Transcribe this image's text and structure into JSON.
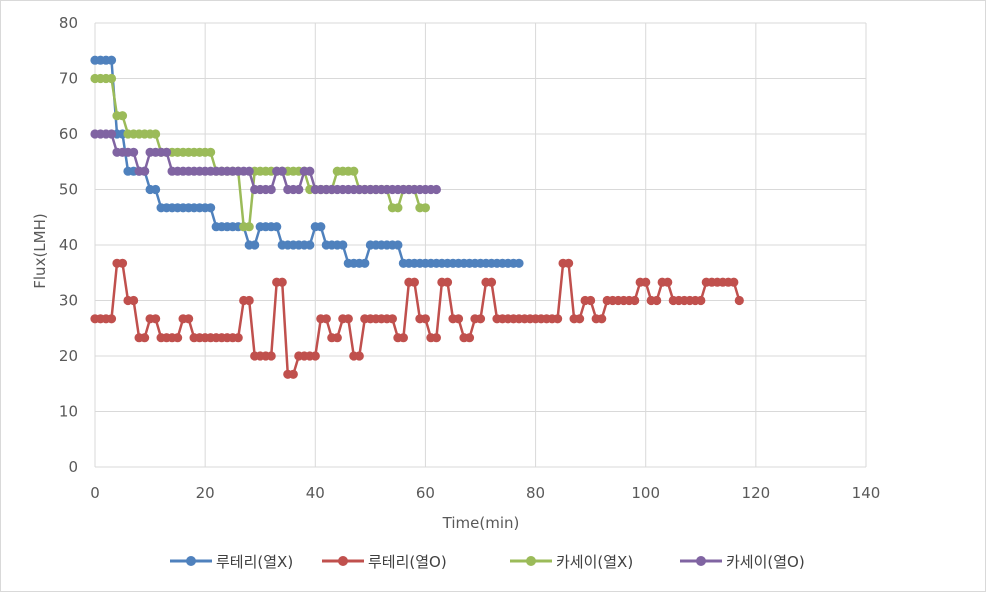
{
  "chart_data": {
    "type": "line",
    "xlabel": "Time(min)",
    "ylabel": "Flux(LMH)",
    "xlim": [
      0,
      140
    ],
    "ylim": [
      0,
      80
    ],
    "xticks": [
      0,
      20,
      40,
      60,
      80,
      100,
      120,
      140
    ],
    "yticks": [
      0,
      10,
      20,
      30,
      40,
      50,
      60,
      70,
      80
    ],
    "grid": true,
    "legend_position": "bottom",
    "series": [
      {
        "name": "루테리(열X)",
        "color": "#4f81bd",
        "points": [
          [
            0,
            73.3
          ],
          [
            1,
            73.3
          ],
          [
            2,
            73.3
          ],
          [
            3,
            73.3
          ],
          [
            4,
            60
          ],
          [
            5,
            60
          ],
          [
            6,
            53.3
          ],
          [
            7,
            53.3
          ],
          [
            8,
            53.3
          ],
          [
            9,
            53.3
          ],
          [
            10,
            50
          ],
          [
            11,
            50
          ],
          [
            12,
            46.7
          ],
          [
            13,
            46.7
          ],
          [
            14,
            46.7
          ],
          [
            15,
            46.7
          ],
          [
            16,
            46.7
          ],
          [
            17,
            46.7
          ],
          [
            18,
            46.7
          ],
          [
            19,
            46.7
          ],
          [
            20,
            46.7
          ],
          [
            21,
            46.7
          ],
          [
            22,
            43.3
          ],
          [
            23,
            43.3
          ],
          [
            24,
            43.3
          ],
          [
            25,
            43.3
          ],
          [
            26,
            43.3
          ],
          [
            27,
            43.3
          ],
          [
            28,
            40
          ],
          [
            29,
            40
          ],
          [
            30,
            43.3
          ],
          [
            31,
            43.3
          ],
          [
            32,
            43.3
          ],
          [
            33,
            43.3
          ],
          [
            34,
            40
          ],
          [
            35,
            40
          ],
          [
            36,
            40
          ],
          [
            37,
            40
          ],
          [
            38,
            40
          ],
          [
            39,
            40
          ],
          [
            40,
            43.3
          ],
          [
            41,
            43.3
          ],
          [
            42,
            40
          ],
          [
            43,
            40
          ],
          [
            44,
            40
          ],
          [
            45,
            40
          ],
          [
            46,
            36.7
          ],
          [
            47,
            36.7
          ],
          [
            48,
            36.7
          ],
          [
            49,
            36.7
          ],
          [
            50,
            40
          ],
          [
            51,
            40
          ],
          [
            52,
            40
          ],
          [
            53,
            40
          ],
          [
            54,
            40
          ],
          [
            55,
            40
          ],
          [
            56,
            36.7
          ],
          [
            57,
            36.7
          ],
          [
            58,
            36.7
          ],
          [
            59,
            36.7
          ],
          [
            60,
            36.7
          ],
          [
            61,
            36.7
          ],
          [
            62,
            36.7
          ],
          [
            63,
            36.7
          ],
          [
            64,
            36.7
          ],
          [
            65,
            36.7
          ],
          [
            66,
            36.7
          ],
          [
            67,
            36.7
          ],
          [
            68,
            36.7
          ],
          [
            69,
            36.7
          ],
          [
            70,
            36.7
          ],
          [
            71,
            36.7
          ],
          [
            72,
            36.7
          ],
          [
            73,
            36.7
          ],
          [
            74,
            36.7
          ],
          [
            75,
            36.7
          ],
          [
            76,
            36.7
          ],
          [
            77,
            36.7
          ]
        ]
      },
      {
        "name": "루테리(열O)",
        "color": "#c0504d",
        "points": [
          [
            0,
            26.7
          ],
          [
            1,
            26.7
          ],
          [
            2,
            26.7
          ],
          [
            3,
            26.7
          ],
          [
            4,
            36.7
          ],
          [
            5,
            36.7
          ],
          [
            6,
            30
          ],
          [
            7,
            30
          ],
          [
            8,
            23.3
          ],
          [
            9,
            23.3
          ],
          [
            10,
            26.7
          ],
          [
            11,
            26.7
          ],
          [
            12,
            23.3
          ],
          [
            13,
            23.3
          ],
          [
            14,
            23.3
          ],
          [
            15,
            23.3
          ],
          [
            16,
            26.7
          ],
          [
            17,
            26.7
          ],
          [
            18,
            23.3
          ],
          [
            19,
            23.3
          ],
          [
            20,
            23.3
          ],
          [
            21,
            23.3
          ],
          [
            22,
            23.3
          ],
          [
            23,
            23.3
          ],
          [
            24,
            23.3
          ],
          [
            25,
            23.3
          ],
          [
            26,
            23.3
          ],
          [
            27,
            30
          ],
          [
            28,
            30
          ],
          [
            29,
            20
          ],
          [
            30,
            20
          ],
          [
            31,
            20
          ],
          [
            32,
            20
          ],
          [
            33,
            33.3
          ],
          [
            34,
            33.3
          ],
          [
            35,
            16.7
          ],
          [
            36,
            16.7
          ],
          [
            37,
            20
          ],
          [
            38,
            20
          ],
          [
            39,
            20
          ],
          [
            40,
            20
          ],
          [
            41,
            26.7
          ],
          [
            42,
            26.7
          ],
          [
            43,
            23.3
          ],
          [
            44,
            23.3
          ],
          [
            45,
            26.7
          ],
          [
            46,
            26.7
          ],
          [
            47,
            20
          ],
          [
            48,
            20
          ],
          [
            49,
            26.7
          ],
          [
            50,
            26.7
          ],
          [
            51,
            26.7
          ],
          [
            52,
            26.7
          ],
          [
            53,
            26.7
          ],
          [
            54,
            26.7
          ],
          [
            55,
            23.3
          ],
          [
            56,
            23.3
          ],
          [
            57,
            33.3
          ],
          [
            58,
            33.3
          ],
          [
            59,
            26.7
          ],
          [
            60,
            26.7
          ],
          [
            61,
            23.3
          ],
          [
            62,
            23.3
          ],
          [
            63,
            33.3
          ],
          [
            64,
            33.3
          ],
          [
            65,
            26.7
          ],
          [
            66,
            26.7
          ],
          [
            67,
            23.3
          ],
          [
            68,
            23.3
          ],
          [
            69,
            26.7
          ],
          [
            70,
            26.7
          ],
          [
            71,
            33.3
          ],
          [
            72,
            33.3
          ],
          [
            73,
            26.7
          ],
          [
            74,
            26.7
          ],
          [
            75,
            26.7
          ],
          [
            76,
            26.7
          ],
          [
            77,
            26.7
          ],
          [
            78,
            26.7
          ],
          [
            79,
            26.7
          ],
          [
            80,
            26.7
          ],
          [
            81,
            26.7
          ],
          [
            82,
            26.7
          ],
          [
            83,
            26.7
          ],
          [
            84,
            26.7
          ],
          [
            85,
            36.7
          ],
          [
            86,
            36.7
          ],
          [
            87,
            26.7
          ],
          [
            88,
            26.7
          ],
          [
            89,
            30
          ],
          [
            90,
            30
          ],
          [
            91,
            26.7
          ],
          [
            92,
            26.7
          ],
          [
            93,
            30
          ],
          [
            94,
            30
          ],
          [
            95,
            30
          ],
          [
            96,
            30
          ],
          [
            97,
            30
          ],
          [
            98,
            30
          ],
          [
            99,
            33.3
          ],
          [
            100,
            33.3
          ],
          [
            101,
            30
          ],
          [
            102,
            30
          ],
          [
            103,
            33.3
          ],
          [
            104,
            33.3
          ],
          [
            105,
            30
          ],
          [
            106,
            30
          ],
          [
            107,
            30
          ],
          [
            108,
            30
          ],
          [
            109,
            30
          ],
          [
            110,
            30
          ],
          [
            111,
            33.3
          ],
          [
            112,
            33.3
          ],
          [
            113,
            33.3
          ],
          [
            114,
            33.3
          ],
          [
            115,
            33.3
          ],
          [
            116,
            33.3
          ],
          [
            117,
            30
          ]
        ]
      },
      {
        "name": "카세이(열X)",
        "color": "#9bbb59",
        "points": [
          [
            0,
            70
          ],
          [
            1,
            70
          ],
          [
            2,
            70
          ],
          [
            3,
            70
          ],
          [
            4,
            63.3
          ],
          [
            5,
            63.3
          ],
          [
            6,
            60
          ],
          [
            7,
            60
          ],
          [
            8,
            60
          ],
          [
            9,
            60
          ],
          [
            10,
            60
          ],
          [
            11,
            60
          ],
          [
            12,
            56.7
          ],
          [
            13,
            56.7
          ],
          [
            14,
            56.7
          ],
          [
            15,
            56.7
          ],
          [
            16,
            56.7
          ],
          [
            17,
            56.7
          ],
          [
            18,
            56.7
          ],
          [
            19,
            56.7
          ],
          [
            20,
            56.7
          ],
          [
            21,
            56.7
          ],
          [
            22,
            53.3
          ],
          [
            23,
            53.3
          ],
          [
            24,
            53.3
          ],
          [
            25,
            53.3
          ],
          [
            26,
            53.3
          ],
          [
            27,
            43.3
          ],
          [
            28,
            43.3
          ],
          [
            29,
            53.3
          ],
          [
            30,
            53.3
          ],
          [
            31,
            53.3
          ],
          [
            32,
            53.3
          ],
          [
            33,
            53.3
          ],
          [
            34,
            53.3
          ],
          [
            35,
            53.3
          ],
          [
            36,
            53.3
          ],
          [
            37,
            53.3
          ],
          [
            38,
            53.3
          ],
          [
            39,
            50
          ],
          [
            40,
            50
          ],
          [
            41,
            50
          ],
          [
            42,
            50
          ],
          [
            43,
            50
          ],
          [
            44,
            53.3
          ],
          [
            45,
            53.3
          ],
          [
            46,
            53.3
          ],
          [
            47,
            53.3
          ],
          [
            48,
            50
          ],
          [
            49,
            50
          ],
          [
            50,
            50
          ],
          [
            51,
            50
          ],
          [
            52,
            50
          ],
          [
            53,
            50
          ],
          [
            54,
            46.7
          ],
          [
            55,
            46.7
          ],
          [
            56,
            50
          ],
          [
            57,
            50
          ],
          [
            58,
            50
          ],
          [
            59,
            46.7
          ],
          [
            60,
            46.7
          ]
        ]
      },
      {
        "name": "카세이(열O)",
        "color": "#8064a2",
        "points": [
          [
            0,
            60
          ],
          [
            1,
            60
          ],
          [
            2,
            60
          ],
          [
            3,
            60
          ],
          [
            4,
            56.7
          ],
          [
            5,
            56.7
          ],
          [
            6,
            56.7
          ],
          [
            7,
            56.7
          ],
          [
            8,
            53.3
          ],
          [
            9,
            53.3
          ],
          [
            10,
            56.7
          ],
          [
            11,
            56.7
          ],
          [
            12,
            56.7
          ],
          [
            13,
            56.7
          ],
          [
            14,
            53.3
          ],
          [
            15,
            53.3
          ],
          [
            16,
            53.3
          ],
          [
            17,
            53.3
          ],
          [
            18,
            53.3
          ],
          [
            19,
            53.3
          ],
          [
            20,
            53.3
          ],
          [
            21,
            53.3
          ],
          [
            22,
            53.3
          ],
          [
            23,
            53.3
          ],
          [
            24,
            53.3
          ],
          [
            25,
            53.3
          ],
          [
            26,
            53.3
          ],
          [
            27,
            53.3
          ],
          [
            28,
            53.3
          ],
          [
            29,
            50
          ],
          [
            30,
            50
          ],
          [
            31,
            50
          ],
          [
            32,
            50
          ],
          [
            33,
            53.3
          ],
          [
            34,
            53.3
          ],
          [
            35,
            50
          ],
          [
            36,
            50
          ],
          [
            37,
            50
          ],
          [
            38,
            53.3
          ],
          [
            39,
            53.3
          ],
          [
            40,
            50
          ],
          [
            41,
            50
          ],
          [
            42,
            50
          ],
          [
            43,
            50
          ],
          [
            44,
            50
          ],
          [
            45,
            50
          ],
          [
            46,
            50
          ],
          [
            47,
            50
          ],
          [
            48,
            50
          ],
          [
            49,
            50
          ],
          [
            50,
            50
          ],
          [
            51,
            50
          ],
          [
            52,
            50
          ],
          [
            53,
            50
          ],
          [
            54,
            50
          ],
          [
            55,
            50
          ],
          [
            56,
            50
          ],
          [
            57,
            50
          ],
          [
            58,
            50
          ],
          [
            59,
            50
          ],
          [
            60,
            50
          ],
          [
            61,
            50
          ],
          [
            62,
            50
          ]
        ]
      }
    ]
  }
}
